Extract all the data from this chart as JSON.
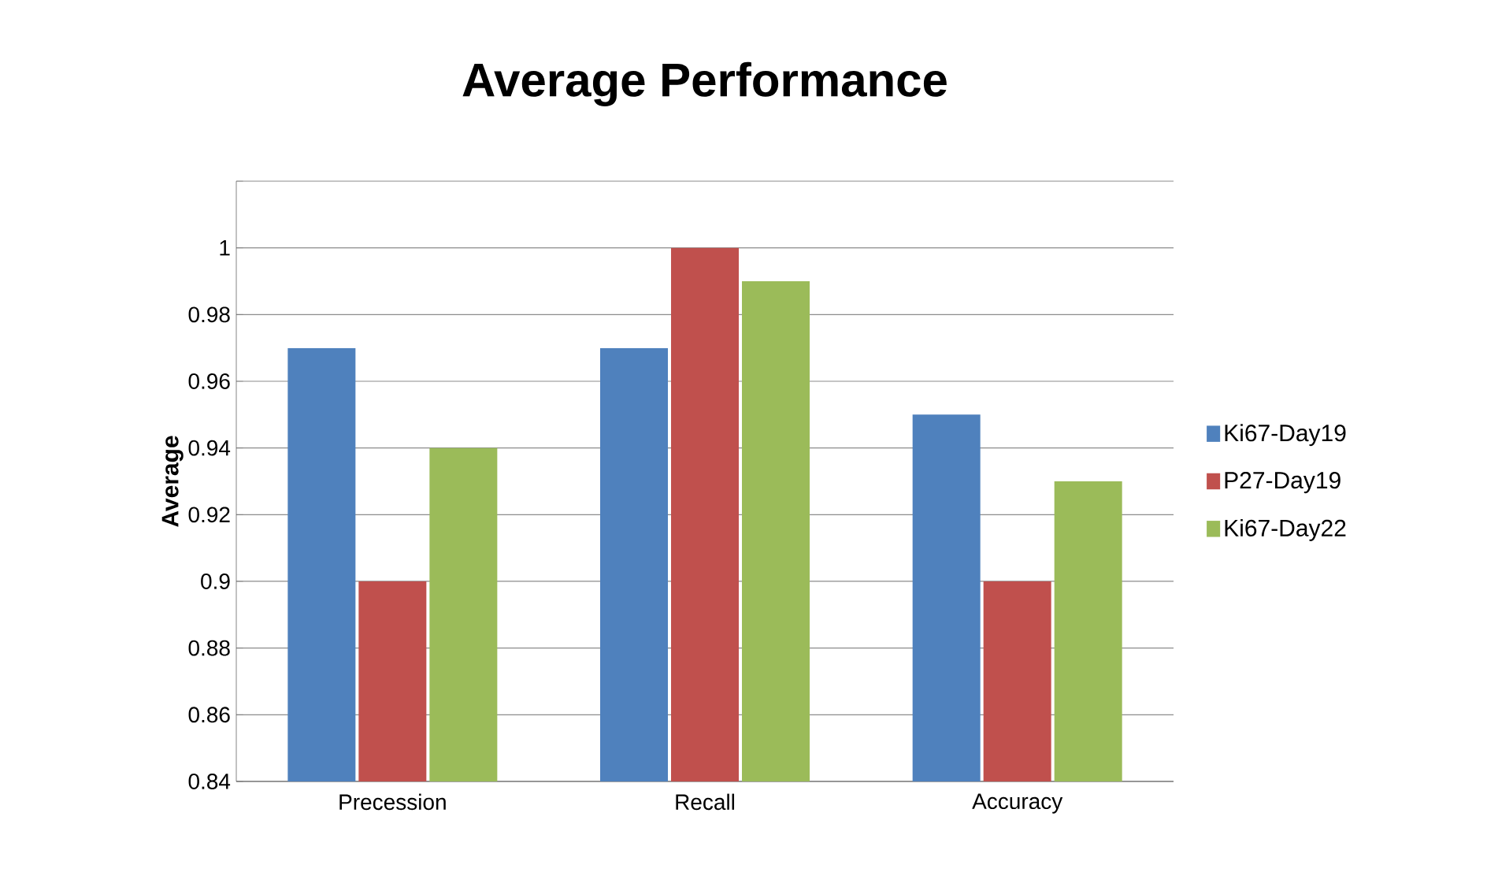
{
  "chart_data": {
    "type": "bar",
    "title": "Average Performance",
    "ylabel": "Average",
    "categories": [
      "Precession",
      "Recall",
      "Accuracy"
    ],
    "series": [
      {
        "name": "Ki67-Day19",
        "color": "#4f81bd",
        "values": [
          0.97,
          0.97,
          0.95
        ]
      },
      {
        "name": "P27-Day19",
        "color": "#c0504d",
        "values": [
          0.9,
          1.0,
          0.9
        ]
      },
      {
        "name": "Ki67-Day22",
        "color": "#9bbb59",
        "values": [
          0.94,
          0.99,
          0.93
        ]
      }
    ],
    "ylim": [
      0.84,
      1.02
    ],
    "yticks": [
      0.84,
      0.86,
      0.88,
      0.9,
      0.92,
      0.94,
      0.96,
      0.98,
      1,
      {
        "value": 1.02,
        "label": null
      }
    ],
    "grid": "y",
    "legend": "right"
  }
}
